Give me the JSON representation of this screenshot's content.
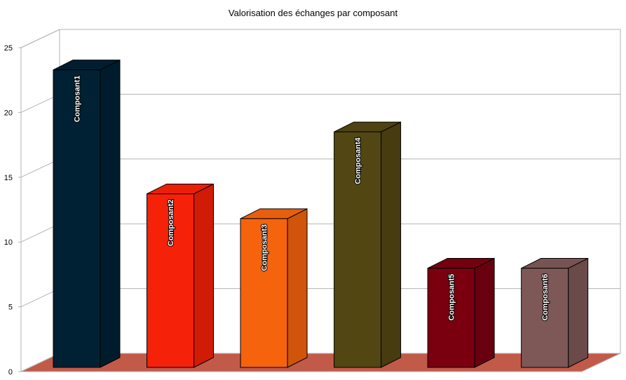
{
  "chart_data": {
    "type": "bar",
    "title": "Valorisation des échanges par composant",
    "categories": [
      "Composant1",
      "Composant2",
      "Composant3",
      "Composant4",
      "Composant5",
      "Composant6"
    ],
    "values": [
      24,
      14,
      12,
      19,
      8,
      8
    ],
    "colors": [
      "#002033",
      "#f52108",
      "#f5630d",
      "#524712",
      "#7a0010",
      "#7d5857"
    ],
    "floor_color": "#c25a49",
    "ylim": [
      0,
      25
    ],
    "yticks": [
      0,
      5,
      10,
      15,
      20,
      25
    ],
    "xlabel": "",
    "ylabel": "",
    "grid": true,
    "legend": "none"
  }
}
